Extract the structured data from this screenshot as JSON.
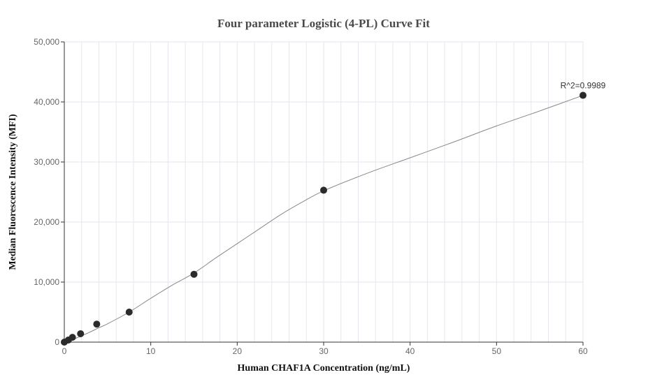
{
  "chart_data": {
    "type": "scatter",
    "title": "Four parameter Logistic (4-PL) Curve Fit",
    "xlabel": "Human CHAF1A Concentration (ng/mL)",
    "ylabel": "Median Fluorescence Intensity (MFI)",
    "xlim": [
      0,
      60
    ],
    "ylim": [
      0,
      50000
    ],
    "x_ticks": [
      0,
      10,
      20,
      30,
      40,
      50,
      60
    ],
    "x_tick_labels": [
      "0",
      "10",
      "20",
      "30",
      "40",
      "50",
      "60"
    ],
    "y_ticks": [
      0,
      10000,
      20000,
      30000,
      40000,
      50000
    ],
    "y_tick_labels": [
      "0",
      "10,000",
      "20,000",
      "30,000",
      "40,000",
      "50,000"
    ],
    "grid": true,
    "annotation": "R^2=0.9989",
    "points": {
      "x": [
        0,
        0.47,
        0.94,
        1.88,
        3.75,
        7.5,
        15,
        30,
        60
      ],
      "y": [
        0,
        350,
        800,
        1400,
        3000,
        5000,
        11300,
        25300,
        41100
      ]
    },
    "fit_curve": {
      "x": [
        0,
        1,
        2,
        3,
        4,
        5,
        7.5,
        10,
        12.5,
        15,
        17.5,
        20,
        22.5,
        25,
        27.5,
        30,
        35,
        40,
        45,
        50,
        55,
        60
      ],
      "y": [
        0,
        450,
        1050,
        1700,
        2400,
        3050,
        5000,
        7300,
        9500,
        11500,
        14000,
        16400,
        18800,
        21200,
        23300,
        25200,
        28100,
        30700,
        33300,
        36000,
        38500,
        41100
      ]
    },
    "colors": {
      "points": "#2b2b2b",
      "curve": "#888888",
      "grid": "#e6e6ee",
      "axis": "#333333"
    }
  }
}
